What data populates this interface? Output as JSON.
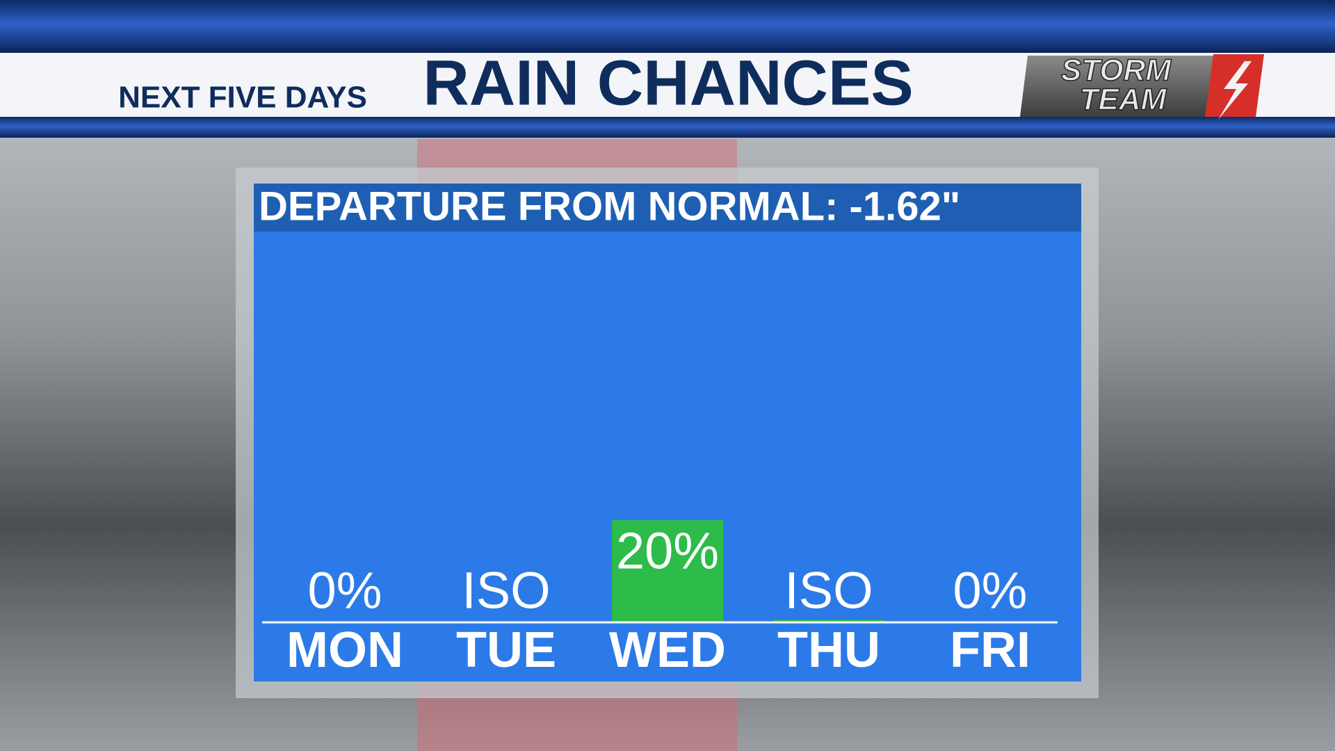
{
  "header": {
    "subtitle": "NEXT FIVE DAYS",
    "title": "RAIN CHANCES",
    "logo_line1": "STORM",
    "logo_line2": "TEAM"
  },
  "chart_data": {
    "type": "bar",
    "title": "DEPARTURE FROM NORMAL: -1.62\"",
    "categories": [
      "MON",
      "TUE",
      "WED",
      "THU",
      "FRI"
    ],
    "values": [
      0,
      0,
      20,
      0.5,
      0
    ],
    "value_labels": [
      "0%",
      "ISO",
      "20%",
      "ISO",
      "0%"
    ],
    "color": "#2dbb4a"
  }
}
